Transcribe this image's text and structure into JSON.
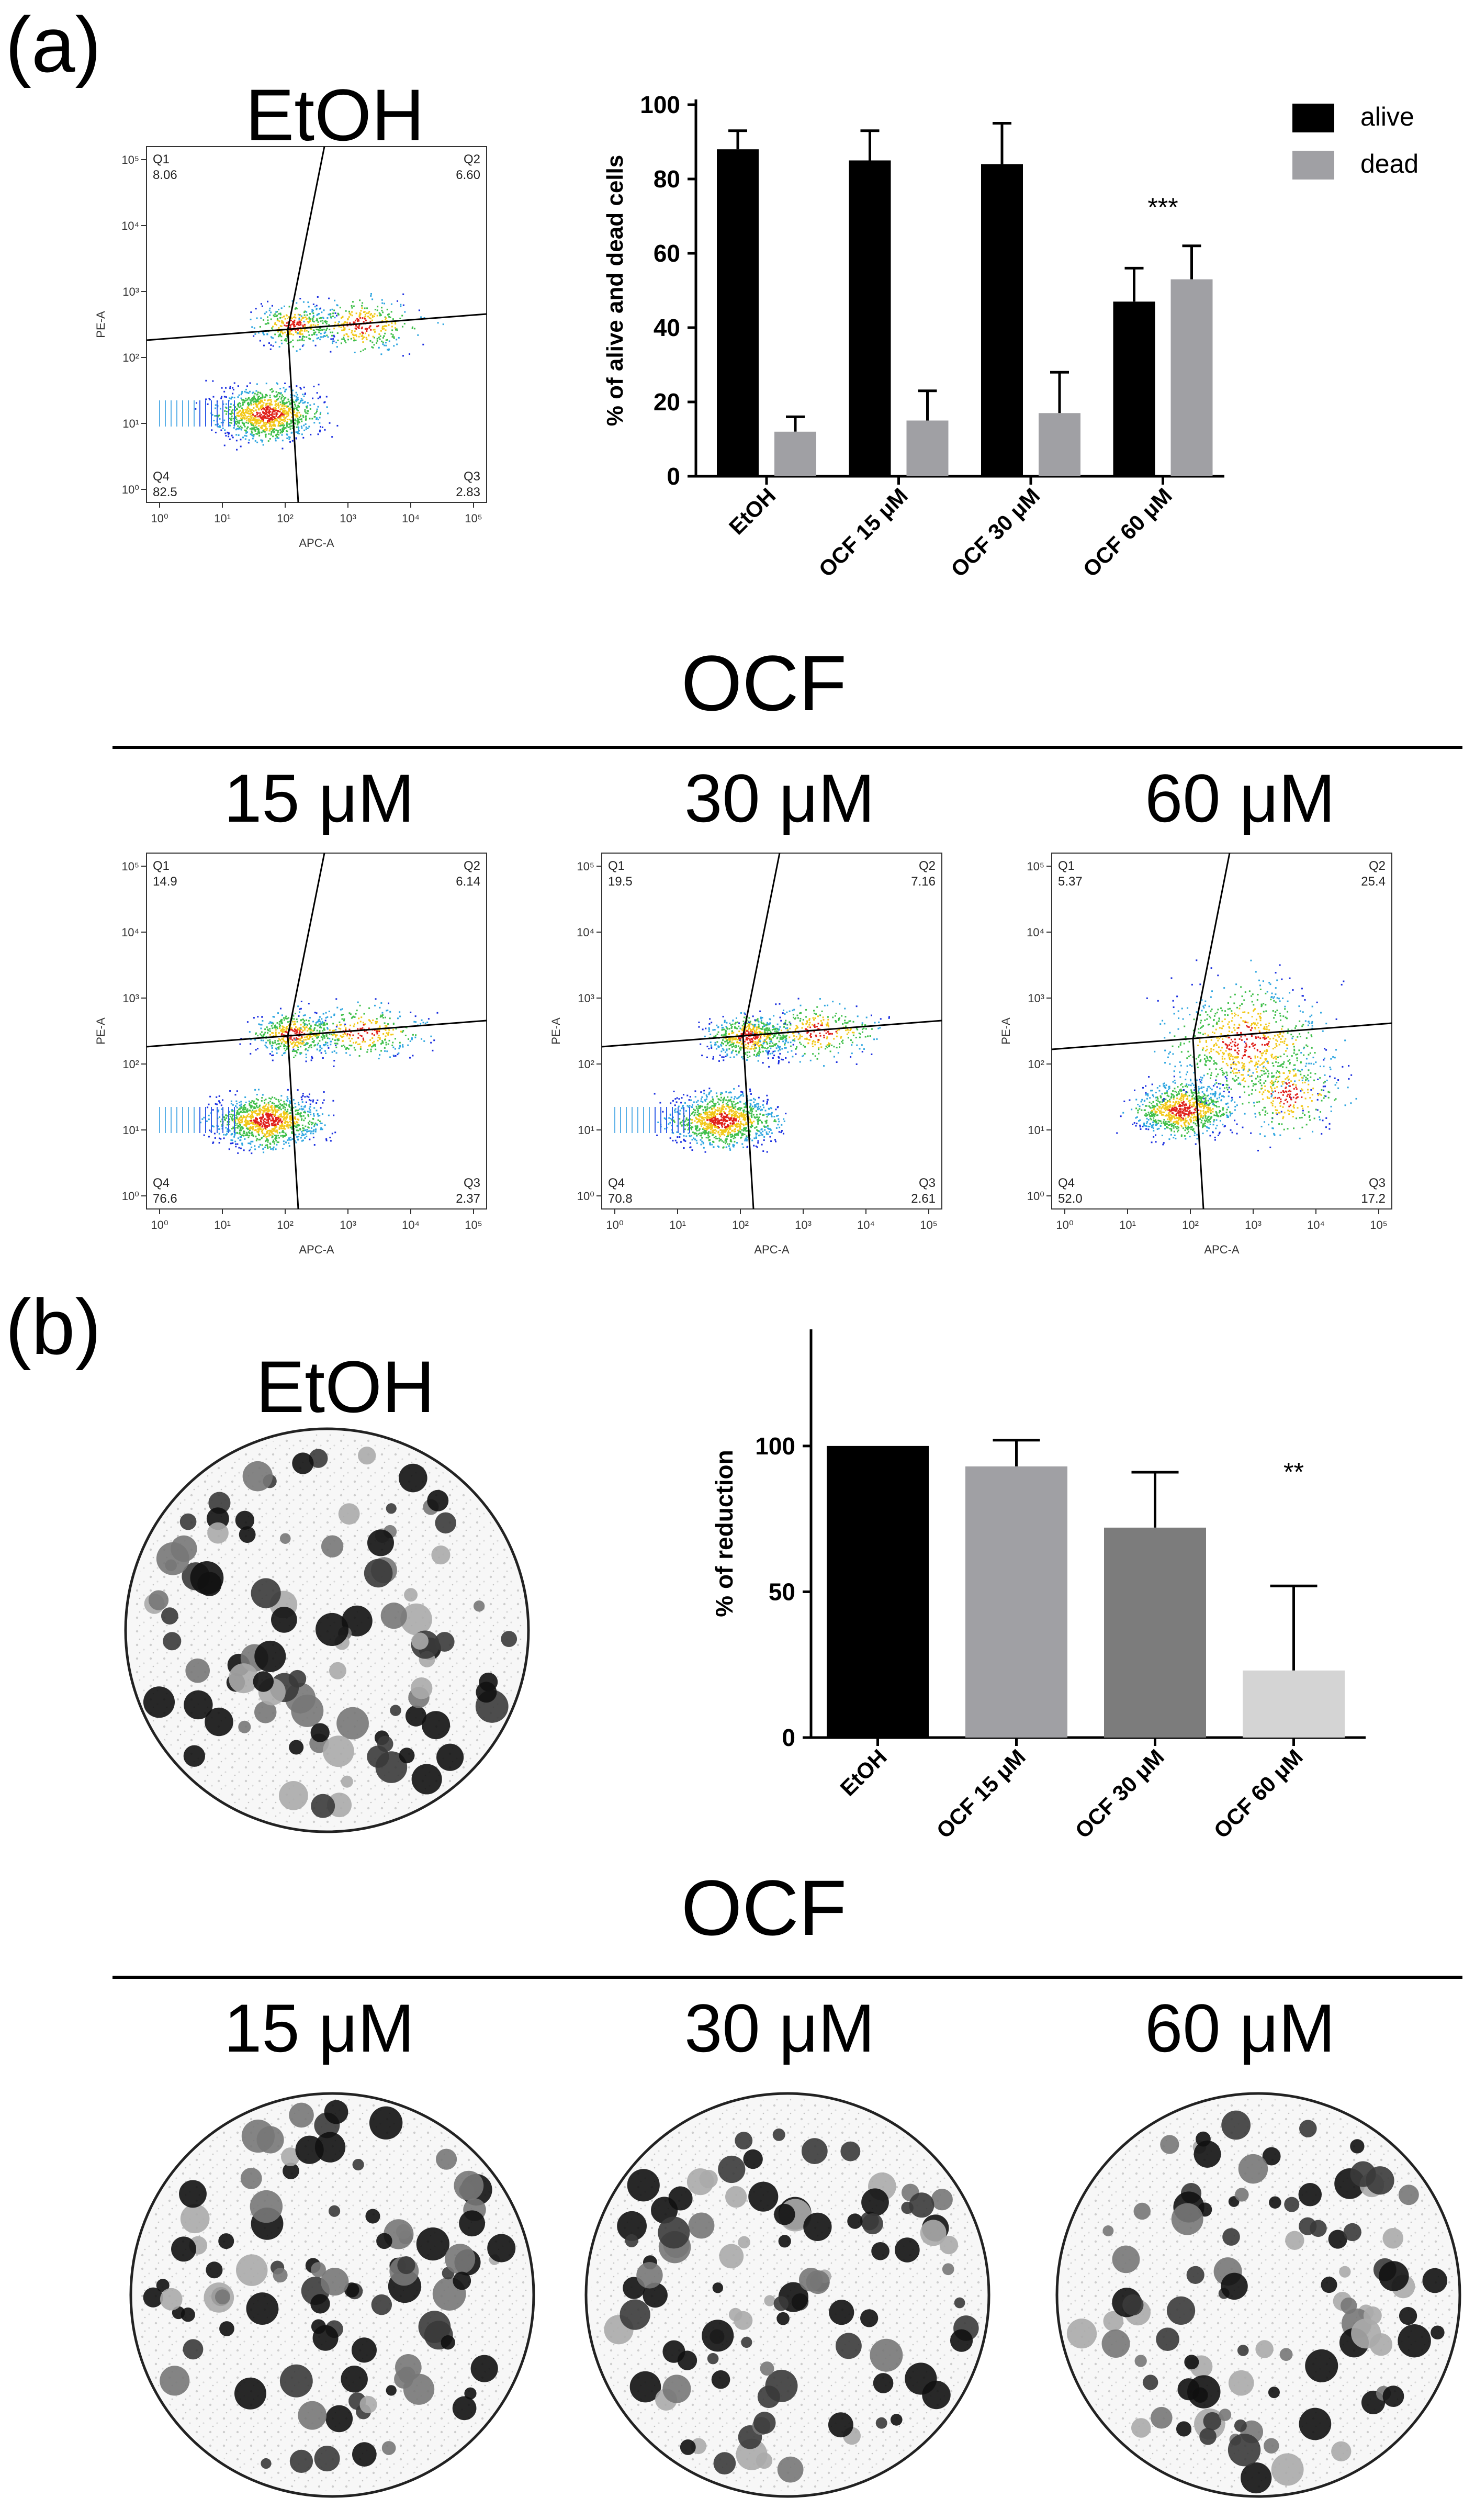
{
  "panel_a": {
    "label": "(a)",
    "control_title": "EtOH",
    "ocf_title": "OCF",
    "conditions": [
      "15 μM",
      "30 μM",
      "60 μM"
    ]
  },
  "panel_b": {
    "label": "(b)",
    "control_title": "EtOH",
    "ocf_title": "OCF",
    "conditions": [
      "15 μM",
      "30 μM",
      "60 μM"
    ]
  },
  "flow_plots": [
    {
      "id": "etoh",
      "xlabel": "APC-A",
      "ylabel": "PE-A",
      "quadrants": {
        "Q1": "8.06",
        "Q2": "6.60",
        "Q3": "2.83",
        "Q4": "82.5"
      }
    },
    {
      "id": "ocf15",
      "xlabel": "APC-A",
      "ylabel": "PE-A",
      "quadrants": {
        "Q1": "14.9",
        "Q2": "6.14",
        "Q3": "2.37",
        "Q4": "76.6"
      }
    },
    {
      "id": "ocf30",
      "xlabel": "APC-A",
      "ylabel": "PE-A",
      "quadrants": {
        "Q1": "19.5",
        "Q2": "7.16",
        "Q3": "2.61",
        "Q4": "70.8"
      }
    },
    {
      "id": "ocf60",
      "xlabel": "APC-A",
      "ylabel": "PE-A",
      "quadrants": {
        "Q1": "5.37",
        "Q2": "25.4",
        "Q3": "17.2",
        "Q4": "52.0"
      }
    }
  ],
  "flow_axis_ticks": [
    "10⁰",
    "10¹",
    "10²",
    "10³",
    "10⁴",
    "10⁵"
  ],
  "chart_data": [
    {
      "type": "bar",
      "title": "",
      "categories": [
        "EtOH",
        "OCF 15 μM",
        "OCF 30 μM",
        "OCF 60 μM"
      ],
      "series": [
        {
          "name": "alive",
          "color": "#000000",
          "values": [
            88,
            85,
            84,
            47
          ],
          "errors": [
            5,
            8,
            11,
            9
          ]
        },
        {
          "name": "dead",
          "color": "#a0a0a4",
          "values": [
            12,
            15,
            17,
            53
          ],
          "errors": [
            4,
            8,
            11,
            9
          ]
        }
      ],
      "xlabel": "",
      "ylabel": "% of alive and dead cells",
      "ylim": [
        0,
        100
      ],
      "yticks": [
        0,
        20,
        40,
        60,
        80,
        100
      ],
      "legend": "top-right",
      "annotations": [
        {
          "category": "OCF 60 μM",
          "text": "***"
        }
      ]
    },
    {
      "type": "bar",
      "title": "",
      "categories": [
        "EtOH",
        "OCF 15 μM",
        "OCF 30 μM",
        "OCF 60 μM"
      ],
      "series": [
        {
          "name": "% of reduction",
          "values": [
            100,
            93,
            72,
            23
          ],
          "errors": [
            0,
            9,
            19,
            29
          ],
          "colors": [
            "#000000",
            "#a0a0a4",
            "#7c7c7c",
            "#d4d4d4"
          ]
        }
      ],
      "xlabel": "",
      "ylabel": "% of reduction",
      "ylim": [
        0,
        140
      ],
      "yticks": [
        0,
        50,
        100
      ],
      "annotations": [
        {
          "category": "OCF 60 μM",
          "text": "**"
        }
      ]
    }
  ]
}
